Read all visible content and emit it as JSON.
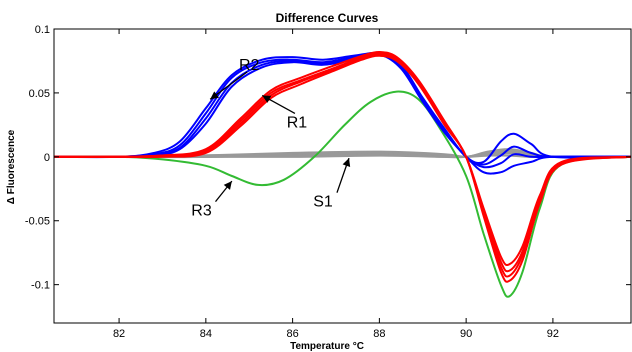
{
  "chart_data": {
    "type": "line",
    "title": "Difference Curves",
    "xlabel": "Temperature °C",
    "ylabel": "Δ Fluorescence",
    "xlim": [
      80.5,
      93.8
    ],
    "ylim": [
      -0.13,
      0.1
    ],
    "x_ticks": [
      82,
      84,
      86,
      88,
      90,
      92
    ],
    "x_tick_labels": [
      "82",
      "84",
      "86",
      "88",
      "90",
      "92"
    ],
    "y_ticks": [
      0.1,
      0.05,
      0,
      -0.05,
      -0.1
    ],
    "y_tick_labels": [
      "0.1",
      "0.05",
      "0",
      "-0.05",
      "-0.1"
    ],
    "grid": false,
    "colors": {
      "R1": "#ff0000",
      "R2": "#0000ff",
      "R3": "#33bb33",
      "S1": "#999999"
    },
    "groups": [
      {
        "label": "R2",
        "color": "#0000ff",
        "x": [
          80.5,
          82,
          82.8,
          83.4,
          84,
          84.6,
          85.3,
          86,
          86.7,
          87.4,
          88,
          88.5,
          89,
          89.5,
          90,
          90.4,
          90.8,
          91.1,
          91.5,
          92,
          93.8
        ],
        "curves": [
          [
            0,
            0,
            0.003,
            0.012,
            0.038,
            0.064,
            0.076,
            0.078,
            0.076,
            0.079,
            0.081,
            0.072,
            0.046,
            0.022,
            0,
            -0.004,
            0.012,
            0.018,
            0.01,
            0,
            0
          ],
          [
            0,
            0,
            0.002,
            0.009,
            0.034,
            0.062,
            0.074,
            0.076,
            0.074,
            0.078,
            0.081,
            0.071,
            0.045,
            0.021,
            0,
            -0.006,
            0.001,
            0.008,
            0.003,
            0,
            0
          ],
          [
            0,
            0,
            0.002,
            0.007,
            0.03,
            0.058,
            0.072,
            0.075,
            0.073,
            0.077,
            0.08,
            0.07,
            0.044,
            0.02,
            0,
            -0.008,
            -0.005,
            0.002,
            0,
            0,
            0
          ],
          [
            0,
            0,
            0.001,
            0.006,
            0.026,
            0.055,
            0.07,
            0.074,
            0.072,
            0.076,
            0.08,
            0.069,
            0.043,
            0.019,
            0,
            -0.012,
            -0.012,
            -0.007,
            -0.004,
            0,
            0
          ]
        ]
      },
      {
        "label": "R1",
        "color": "#ff0000",
        "x": [
          80.5,
          82,
          83,
          84,
          84.8,
          85.5,
          86.2,
          87,
          87.6,
          88,
          88.4,
          88.9,
          89.5,
          90,
          90.4,
          90.8,
          91,
          91.3,
          91.7,
          92.2,
          93.8
        ],
        "curves": [
          [
            0,
            0,
            0.001,
            0.006,
            0.03,
            0.052,
            0.062,
            0.072,
            0.079,
            0.082,
            0.078,
            0.06,
            0.028,
            0,
            -0.04,
            -0.078,
            -0.084,
            -0.07,
            -0.03,
            -0.004,
            0
          ],
          [
            0,
            0,
            0.001,
            0.005,
            0.028,
            0.05,
            0.06,
            0.07,
            0.078,
            0.081,
            0.077,
            0.059,
            0.027,
            0,
            -0.042,
            -0.082,
            -0.089,
            -0.074,
            -0.032,
            -0.005,
            0
          ],
          [
            0,
            0,
            0.001,
            0.004,
            0.026,
            0.048,
            0.059,
            0.069,
            0.077,
            0.08,
            0.076,
            0.058,
            0.026,
            0,
            -0.044,
            -0.086,
            -0.093,
            -0.077,
            -0.034,
            -0.005,
            0
          ],
          [
            0,
            0,
            0,
            0.003,
            0.024,
            0.046,
            0.057,
            0.068,
            0.076,
            0.079,
            0.075,
            0.057,
            0.025,
            0,
            -0.046,
            -0.09,
            -0.097,
            -0.081,
            -0.036,
            -0.006,
            0
          ]
        ]
      },
      {
        "label": "R3",
        "color": "#33bb33",
        "x": [
          80.5,
          82,
          83,
          84,
          84.6,
          85.2,
          85.8,
          86.5,
          87.2,
          87.8,
          88.4,
          88.9,
          89.4,
          90,
          90.4,
          90.8,
          91,
          91.3,
          91.7,
          92.2,
          93.8
        ],
        "curves": [
          [
            0,
            0,
            -0.002,
            -0.007,
            -0.015,
            -0.022,
            -0.018,
            0,
            0.025,
            0.043,
            0.051,
            0.045,
            0.022,
            -0.015,
            -0.06,
            -0.1,
            -0.109,
            -0.09,
            -0.04,
            -0.006,
            0
          ]
        ]
      },
      {
        "label": "S1",
        "color": "#999999",
        "x": [
          80.5,
          82,
          84,
          86,
          88,
          89.5,
          90,
          90.5,
          91,
          91.5,
          92,
          93.8
        ],
        "curves": [
          [
            0,
            0,
            0.001,
            0.003,
            0.004,
            0.002,
            0,
            0.004,
            0.006,
            0.003,
            0,
            0
          ],
          [
            0,
            0,
            0.001,
            0.002,
            0.003,
            0.001,
            0,
            0.003,
            0.004,
            0.002,
            0,
            0
          ],
          [
            0,
            0,
            0,
            0.002,
            0.003,
            0.001,
            0,
            0.002,
            0.005,
            0.002,
            0,
            0
          ],
          [
            0,
            0,
            0,
            0.001,
            0.002,
            0,
            0,
            0.002,
            0.003,
            0.001,
            0,
            0
          ],
          [
            0,
            0,
            0,
            0,
            0.001,
            0,
            0,
            0.001,
            0.001,
            0,
            0,
            0
          ]
        ]
      }
    ],
    "annotations": [
      {
        "label": "R2",
        "text_x": 85.0,
        "text_y": 0.068,
        "arrow_to_x": 84.1,
        "arrow_to_y": 0.045
      },
      {
        "label": "R1",
        "text_x": 86.1,
        "text_y": 0.023,
        "arrow_to_x": 85.3,
        "arrow_to_y": 0.048
      },
      {
        "label": "R3",
        "text_x": 83.9,
        "text_y": -0.046,
        "arrow_to_x": 84.6,
        "arrow_to_y": -0.019
      },
      {
        "label": "S1",
        "text_x": 86.7,
        "text_y": -0.039,
        "arrow_to_x": 87.3,
        "arrow_to_y": -0.001
      }
    ]
  }
}
